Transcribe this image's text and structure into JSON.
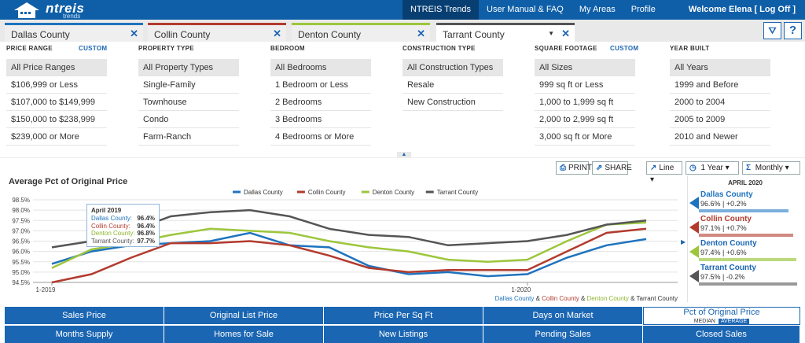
{
  "brand": {
    "name": "ntreis",
    "sub": "trends"
  },
  "topnav": {
    "items": [
      "NTREIS Trends",
      "User Manual & FAQ",
      "My Areas",
      "Profile"
    ],
    "welcome": "Welcome Elena",
    "logoff": "[ Log Off ]"
  },
  "tabs": [
    {
      "label": "Dallas County",
      "color": "#1e73be"
    },
    {
      "label": "Collin County",
      "color": "#b23b2e"
    },
    {
      "label": "Denton County",
      "color": "#9dc63c"
    },
    {
      "label": "Tarrant County",
      "color": "#555555"
    }
  ],
  "tab_tools": {
    "filter_icon": "filter-icon",
    "help": "?"
  },
  "filters": {
    "price": {
      "title": "PRICE RANGE",
      "custom": "CUSTOM",
      "items": [
        "All Price Ranges",
        "$106,999 or Less",
        "$107,000 to $149,999",
        "$150,000 to $238,999",
        "$239,000 or More"
      ]
    },
    "ptype": {
      "title": "PROPERTY TYPE",
      "items": [
        "All Property Types",
        "Single-Family",
        "Townhouse",
        "Condo",
        "Farm-Ranch"
      ]
    },
    "bed": {
      "title": "BEDROOM",
      "items": [
        "All Bedrooms",
        "1 Bedroom or Less",
        "2 Bedrooms",
        "3 Bedrooms",
        "4 Bedrooms or More"
      ]
    },
    "ctype": {
      "title": "CONSTRUCTION TYPE",
      "items": [
        "All Construction Types",
        "Resale",
        "New Construction"
      ]
    },
    "sqft": {
      "title": "SQUARE FOOTAGE",
      "custom": "CUSTOM",
      "items": [
        "All Sizes",
        "999 sq ft or Less",
        "1,000 to 1,999 sq ft",
        "2,000 to 2,999 sq ft",
        "3,000 sq ft or More"
      ]
    },
    "year": {
      "title": "YEAR BUILT",
      "items": [
        "All Years",
        "1999 and Before",
        "2000 to 2004",
        "2005 to 2009",
        "2010 and Newer"
      ]
    }
  },
  "toolbar": {
    "print": "PRINT",
    "share": "SHARE",
    "chart_type": "Line",
    "period": "1 Year",
    "interval": "Monthly"
  },
  "chart_title": "Average Pct of Original Price",
  "chart_data": {
    "type": "line",
    "title": "Average Pct of Original Price",
    "x": [
      "2019-01",
      "2019-02",
      "2019-03",
      "2019-04",
      "2019-05",
      "2019-06",
      "2019-07",
      "2019-08",
      "2019-09",
      "2019-10",
      "2019-11",
      "2019-12",
      "2020-01",
      "2020-02",
      "2020-03",
      "2020-04"
    ],
    "x_tick_labels": [
      {
        "index": 0,
        "label": "1-2019"
      },
      {
        "index": 12,
        "label": "1-2020"
      }
    ],
    "ylim": [
      94.5,
      98.5
    ],
    "y_ticks": [
      "94.5%",
      "95.0%",
      "95.5%",
      "96.0%",
      "96.5%",
      "97.0%",
      "97.5%",
      "98.0%",
      "98.5%"
    ],
    "series": [
      {
        "name": "Dallas County",
        "color": "#1e73be",
        "values": [
          95.4,
          96.0,
          96.3,
          96.4,
          96.5,
          96.9,
          96.3,
          96.2,
          95.3,
          94.9,
          95.0,
          94.8,
          94.9,
          95.7,
          96.3,
          96.6
        ]
      },
      {
        "name": "Collin County",
        "color": "#b23b2e",
        "values": [
          94.5,
          94.9,
          95.7,
          96.4,
          96.4,
          96.5,
          96.3,
          95.8,
          95.2,
          95.0,
          95.1,
          95.1,
          95.1,
          96.0,
          96.9,
          97.1
        ]
      },
      {
        "name": "Denton County",
        "color": "#9dc63c",
        "values": [
          95.2,
          96.1,
          96.4,
          96.8,
          97.1,
          97.0,
          96.9,
          96.5,
          96.2,
          96.0,
          95.6,
          95.5,
          95.6,
          96.5,
          97.3,
          97.4
        ]
      },
      {
        "name": "Tarrant County",
        "color": "#555555",
        "values": [
          96.2,
          96.5,
          97.0,
          97.7,
          97.9,
          98.0,
          97.7,
          97.1,
          96.8,
          96.7,
          96.3,
          96.4,
          96.5,
          96.8,
          97.3,
          97.5
        ]
      }
    ],
    "legend": "top-center",
    "grid": true
  },
  "legend_items": [
    "Dallas County",
    "Collin County",
    "Denton County",
    "Tarrant County"
  ],
  "footer_label": {
    "dallas": "Dallas County",
    "amp1": " & ",
    "collin": "Collin County",
    "amp2": " & ",
    "denton": "Denton County",
    "amp3": " & ",
    "tarrant": "Tarrant County"
  },
  "tooltip": {
    "title": "April 2019",
    "rows": [
      {
        "label": "Dallas County:",
        "value": "96.4%",
        "color": "#1e73be"
      },
      {
        "label": "Collin County:",
        "value": "96.4%",
        "color": "#b23b2e"
      },
      {
        "label": "Denton County:",
        "value": "96.8%",
        "color": "#9dc63c"
      },
      {
        "label": "Tarrant County:",
        "value": "97.7%",
        "color": "#555555"
      }
    ]
  },
  "side_panel": {
    "header": "APRIL 2020",
    "items": [
      {
        "name": "Dallas County",
        "value": "96.6% | +0.2%",
        "color": "#1e73be",
        "bar_fraction": 0.88
      },
      {
        "name": "Collin County",
        "value": "97.1% | +0.7%",
        "color": "#b23b2e",
        "bar_fraction": 0.92
      },
      {
        "name": "Denton County",
        "value": "97.4% | +0.6%",
        "color": "#9dc63c",
        "bar_fraction": 0.95
      },
      {
        "name": "Tarrant County",
        "value": "97.5% | -0.2%",
        "color": "#555555",
        "bar_fraction": 0.96
      }
    ]
  },
  "tiles": {
    "row1": [
      "Sales Price",
      "Original List Price",
      "Price Per Sq Ft",
      "Days on Market",
      "Pct of Original Price"
    ],
    "row2": [
      "Months Supply",
      "Homes for Sale",
      "New Listings",
      "Pending Sales",
      "Closed Sales"
    ],
    "sub_median": "MEDIAN",
    "sub_average": "AVERAGE"
  }
}
